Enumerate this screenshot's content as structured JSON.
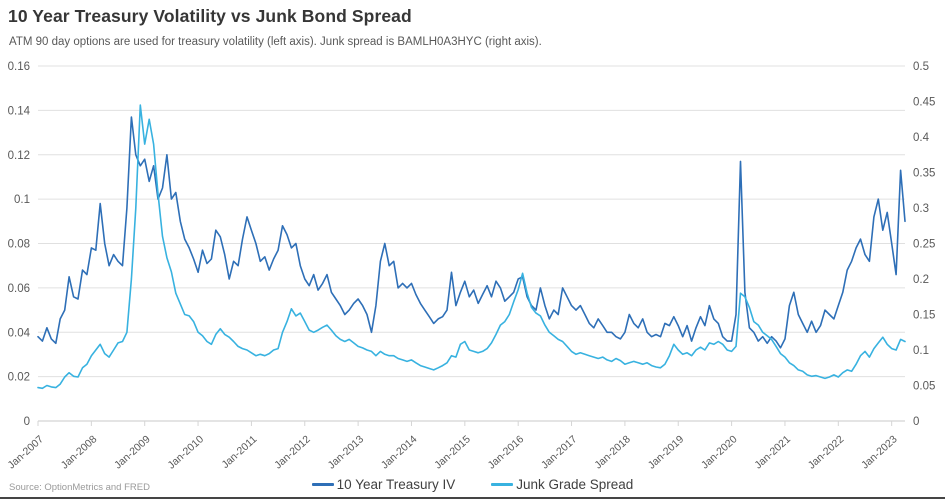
{
  "header": {
    "title": "10 Year Treasury Volatility vs Junk Bond Spread",
    "subtitle": "ATM 90 day options are used for treasury volatility (left axis). Junk spread is BAMLH0A3HYC (right axis)."
  },
  "source_note": "Source: OptionMetrics and FRED",
  "legend": [
    {
      "label": "10 Year Treasury IV",
      "color": "#2e6fb7"
    },
    {
      "label": "Junk Grade Spread",
      "color": "#38b2e0"
    }
  ],
  "colors": {
    "treasury_line": "#2e6fb7",
    "junk_line": "#38b2e0",
    "gridline": "#e0e0e0",
    "axis_text": "#595959",
    "title_text": "#363636"
  },
  "chart_data": {
    "type": "line",
    "title": "10 Year Treasury Volatility vs Junk Bond Spread",
    "subtitle": "ATM 90 day options are used for treasury volatility (left axis). Junk spread is BAMLH0A3HYC (right axis).",
    "grid": "horizontal",
    "legend_position": "bottom",
    "x": {
      "freq": "monthly",
      "start": "2007-01",
      "end": "2023-04",
      "tick_labels": [
        "Jan-2007",
        "Jan-2008",
        "Jan-2009",
        "Jan-2010",
        "Jan-2011",
        "Jan-2012",
        "Jan-2013",
        "Jan-2014",
        "Jan-2015",
        "Jan-2016",
        "Jan-2017",
        "Jan-2018",
        "Jan-2019",
        "Jan-2020",
        "Jan-2021",
        "Jan-2022",
        "Jan-2023"
      ]
    },
    "left_axis": {
      "series": "10 Year Treasury IV",
      "min": 0,
      "max": 0.16,
      "step": 0.02
    },
    "right_axis": {
      "series": "Junk Grade Spread",
      "min": 0,
      "max": 0.5,
      "step": 0.05
    },
    "series": [
      {
        "name": "10 Year Treasury IV",
        "id": "treasury-iv",
        "axis": "left",
        "color": "#2e6fb7",
        "values": [
          0.038,
          0.036,
          0.042,
          0.037,
          0.035,
          0.046,
          0.05,
          0.065,
          0.056,
          0.055,
          0.068,
          0.066,
          0.078,
          0.077,
          0.098,
          0.08,
          0.07,
          0.075,
          0.072,
          0.07,
          0.096,
          0.137,
          0.12,
          0.115,
          0.118,
          0.108,
          0.115,
          0.1,
          0.105,
          0.12,
          0.1,
          0.103,
          0.09,
          0.082,
          0.078,
          0.073,
          0.067,
          0.077,
          0.071,
          0.073,
          0.086,
          0.083,
          0.075,
          0.064,
          0.072,
          0.07,
          0.082,
          0.092,
          0.086,
          0.08,
          0.072,
          0.074,
          0.068,
          0.073,
          0.077,
          0.088,
          0.084,
          0.078,
          0.08,
          0.07,
          0.064,
          0.061,
          0.066,
          0.059,
          0.062,
          0.066,
          0.058,
          0.055,
          0.052,
          0.048,
          0.05,
          0.053,
          0.055,
          0.052,
          0.048,
          0.04,
          0.052,
          0.072,
          0.08,
          0.07,
          0.072,
          0.06,
          0.062,
          0.06,
          0.062,
          0.057,
          0.053,
          0.05,
          0.047,
          0.044,
          0.046,
          0.047,
          0.05,
          0.067,
          0.052,
          0.058,
          0.063,
          0.056,
          0.059,
          0.053,
          0.057,
          0.061,
          0.056,
          0.063,
          0.06,
          0.054,
          0.056,
          0.058,
          0.064,
          0.065,
          0.056,
          0.052,
          0.05,
          0.06,
          0.052,
          0.046,
          0.05,
          0.048,
          0.06,
          0.056,
          0.052,
          0.05,
          0.052,
          0.048,
          0.044,
          0.042,
          0.046,
          0.043,
          0.04,
          0.04,
          0.038,
          0.037,
          0.04,
          0.048,
          0.044,
          0.042,
          0.046,
          0.04,
          0.038,
          0.039,
          0.038,
          0.044,
          0.043,
          0.047,
          0.043,
          0.038,
          0.043,
          0.036,
          0.042,
          0.047,
          0.043,
          0.052,
          0.046,
          0.044,
          0.038,
          0.036,
          0.036,
          0.048,
          0.117,
          0.058,
          0.042,
          0.04,
          0.036,
          0.038,
          0.035,
          0.038,
          0.036,
          0.033,
          0.037,
          0.052,
          0.058,
          0.048,
          0.044,
          0.04,
          0.045,
          0.04,
          0.043,
          0.05,
          0.048,
          0.046,
          0.052,
          0.058,
          0.068,
          0.072,
          0.078,
          0.082,
          0.075,
          0.072,
          0.092,
          0.1,
          0.086,
          0.094,
          0.08,
          0.066,
          0.113,
          0.09
        ]
      },
      {
        "name": "Junk Grade Spread",
        "id": "junk-spread",
        "axis": "right",
        "color": "#38b2e0",
        "values": [
          0.047,
          0.046,
          0.05,
          0.048,
          0.047,
          0.052,
          0.062,
          0.068,
          0.063,
          0.062,
          0.075,
          0.08,
          0.092,
          0.1,
          0.108,
          0.095,
          0.09,
          0.1,
          0.11,
          0.112,
          0.125,
          0.2,
          0.3,
          0.445,
          0.39,
          0.425,
          0.39,
          0.32,
          0.26,
          0.23,
          0.21,
          0.18,
          0.165,
          0.15,
          0.148,
          0.14,
          0.125,
          0.12,
          0.112,
          0.108,
          0.122,
          0.13,
          0.122,
          0.118,
          0.112,
          0.105,
          0.102,
          0.1,
          0.096,
          0.092,
          0.094,
          0.092,
          0.095,
          0.1,
          0.102,
          0.125,
          0.14,
          0.158,
          0.148,
          0.152,
          0.14,
          0.128,
          0.125,
          0.128,
          0.132,
          0.135,
          0.128,
          0.12,
          0.115,
          0.112,
          0.115,
          0.11,
          0.105,
          0.103,
          0.1,
          0.098,
          0.092,
          0.098,
          0.094,
          0.092,
          0.092,
          0.088,
          0.086,
          0.084,
          0.086,
          0.082,
          0.078,
          0.076,
          0.074,
          0.072,
          0.075,
          0.078,
          0.082,
          0.092,
          0.09,
          0.108,
          0.112,
          0.1,
          0.098,
          0.096,
          0.098,
          0.102,
          0.11,
          0.122,
          0.135,
          0.14,
          0.15,
          0.168,
          0.185,
          0.208,
          0.18,
          0.16,
          0.152,
          0.148,
          0.135,
          0.125,
          0.12,
          0.115,
          0.112,
          0.105,
          0.098,
          0.094,
          0.096,
          0.094,
          0.092,
          0.09,
          0.088,
          0.09,
          0.086,
          0.084,
          0.088,
          0.085,
          0.08,
          0.082,
          0.084,
          0.082,
          0.08,
          0.082,
          0.078,
          0.076,
          0.075,
          0.08,
          0.092,
          0.108,
          0.1,
          0.094,
          0.096,
          0.092,
          0.1,
          0.104,
          0.1,
          0.11,
          0.108,
          0.112,
          0.108,
          0.1,
          0.098,
          0.105,
          0.18,
          0.175,
          0.16,
          0.14,
          0.135,
          0.125,
          0.12,
          0.115,
          0.105,
          0.095,
          0.09,
          0.082,
          0.078,
          0.072,
          0.07,
          0.065,
          0.063,
          0.064,
          0.062,
          0.06,
          0.062,
          0.065,
          0.062,
          0.068,
          0.072,
          0.07,
          0.08,
          0.092,
          0.098,
          0.09,
          0.102,
          0.11,
          0.118,
          0.108,
          0.102,
          0.1,
          0.115,
          0.112
        ]
      }
    ]
  }
}
